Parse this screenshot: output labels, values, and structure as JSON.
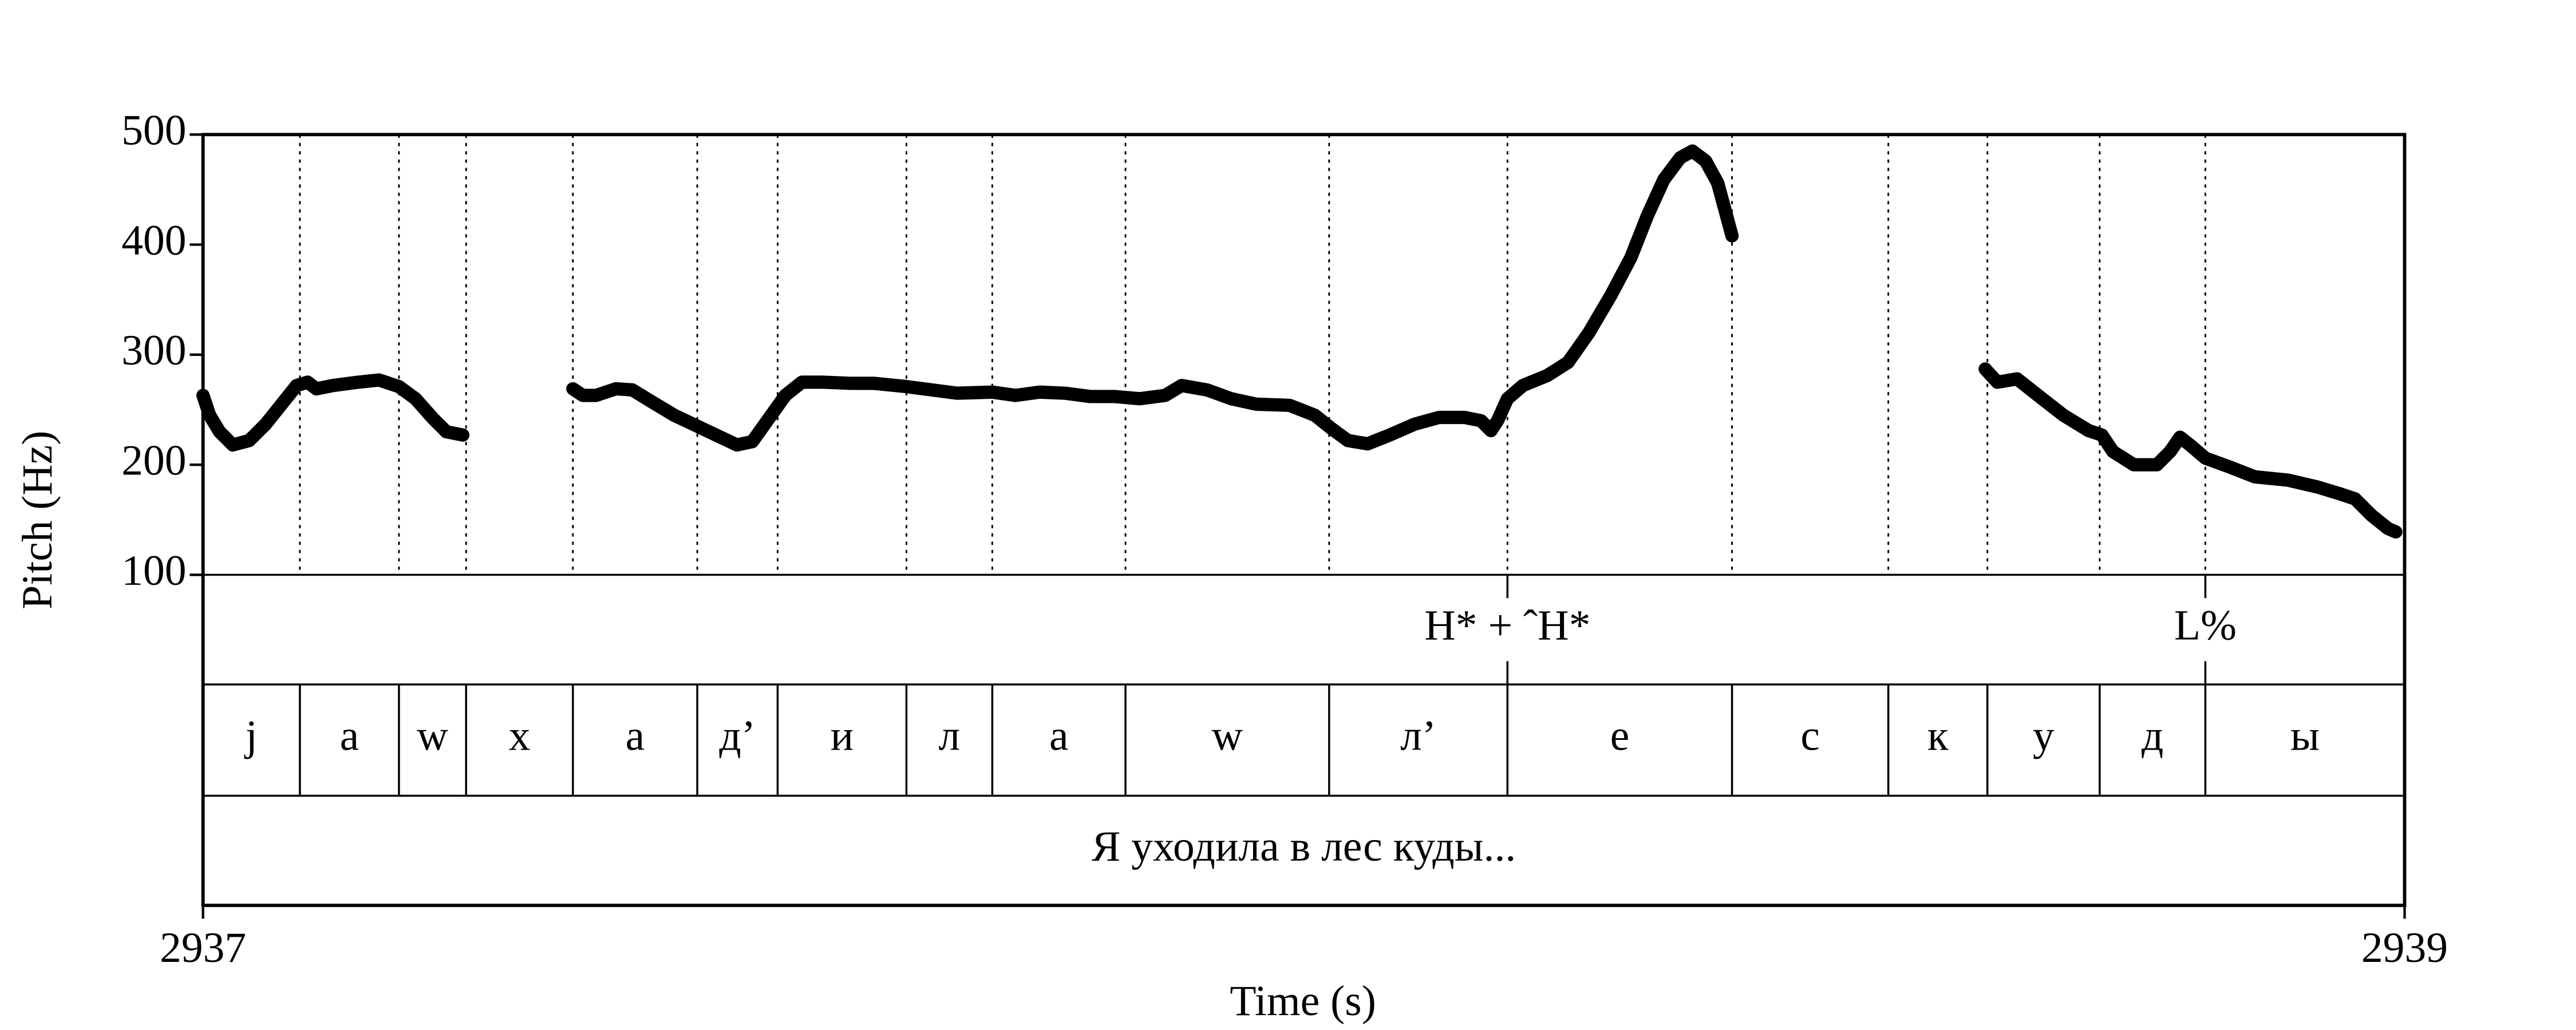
{
  "chart_data": {
    "type": "pitch",
    "x_label": "Time (s)",
    "y_label": "Pitch (Hz)",
    "xlim": [
      2937,
      2939
    ],
    "xticks": [
      2937,
      2939
    ],
    "ylim": [
      100,
      500
    ],
    "yticks": [
      100,
      200,
      300,
      400,
      500
    ],
    "color": "#000000",
    "x": [
      2937.0,
      2937.006,
      2937.015,
      2937.027,
      2937.042,
      2937.057,
      2937.073,
      2937.085,
      2937.095,
      2937.103,
      2937.118,
      2937.141,
      2937.16,
      2937.178,
      2937.193,
      2937.209,
      2937.221,
      2937.236,
      2937.29,
      2937.336,
      2937.345,
      2937.357,
      2937.375,
      2937.39,
      2937.408,
      2937.428,
      2937.447,
      2937.466,
      2937.485,
      2937.499,
      2937.514,
      2937.529,
      2937.544,
      2937.564,
      2937.587,
      2937.609,
      2937.639,
      2937.662,
      2937.685,
      2937.717,
      2937.738,
      2937.76,
      2937.783,
      2937.806,
      2937.828,
      2937.851,
      2937.874,
      2937.889,
      2937.912,
      2937.934,
      2937.957,
      2937.987,
      2938.01,
      2938.025,
      2938.04,
      2938.058,
      2938.078,
      2938.101,
      2938.123,
      2938.146,
      2938.161,
      2938.17,
      2938.176,
      2938.185,
      2938.199,
      2938.221,
      2938.24,
      2938.259,
      2938.279,
      2938.297,
      2938.312,
      2938.327,
      2938.342,
      2938.353,
      2938.365,
      2938.376,
      2938.389,
      2938.5,
      2938.619,
      2938.63,
      2938.648,
      2938.667,
      2938.69,
      2938.713,
      2938.725,
      2938.735,
      2938.754,
      2938.775,
      2938.787,
      2938.796,
      2938.805,
      2938.819,
      2938.841,
      2938.864,
      2938.894,
      2938.92,
      2938.94,
      2938.955,
      2938.97,
      2938.985,
      2938.992
    ],
    "series": [
      {
        "name": "Pitch",
        "values": [
          263,
          245,
          230,
          218,
          222,
          237,
          257,
          272,
          275,
          269,
          272,
          275,
          277,
          271,
          260,
          242,
          230,
          227,
          null,
          269,
          263,
          263,
          269,
          268,
          257,
          245,
          236,
          227,
          218,
          221,
          242,
          263,
          275,
          275,
          274,
          274,
          271,
          268,
          265,
          266,
          263,
          266,
          265,
          262,
          262,
          260,
          263,
          272,
          268,
          260,
          255,
          254,
          245,
          233,
          222,
          219,
          227,
          237,
          243,
          243,
          240,
          231,
          240,
          260,
          272,
          281,
          293,
          320,
          354,
          388,
          426,
          459,
          479,
          485,
          476,
          456,
          408,
          null,
          287,
          275,
          278,
          263,
          245,
          231,
          227,
          212,
          200,
          200,
          212,
          225,
          218,
          206,
          198,
          189,
          186,
          180,
          174,
          169,
          154,
          142,
          139
        ]
      }
    ],
    "tones": [
      {
        "time": 2938.185,
        "label": "H* + ˆH*"
      },
      {
        "time": 2938.819,
        "label": "L%"
      }
    ],
    "segments": {
      "boundaries": [
        2937.088,
        2937.178,
        2937.239,
        2937.336,
        2937.449,
        2937.522,
        2937.639,
        2937.717,
        2937.838,
        2938.023,
        2938.185,
        2938.389,
        2938.531,
        2938.621,
        2938.723,
        2938.819
      ],
      "labels": [
        "j",
        "а",
        "w",
        "х",
        "а",
        "д’",
        "и",
        "л",
        "а",
        "w",
        "л’",
        "е",
        "с",
        "к",
        "у",
        "д",
        "ы"
      ]
    },
    "sentence": "Я уходила в лес куды..."
  }
}
